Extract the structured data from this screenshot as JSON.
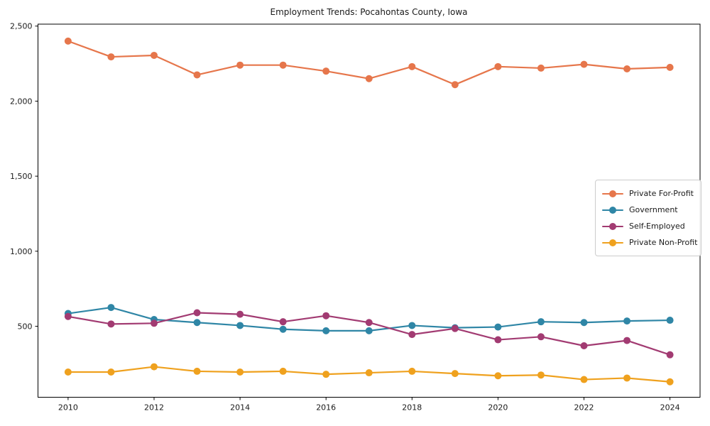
{
  "chart_data": {
    "type": "line",
    "title": "Employment Trends: Pocahontas County, Iowa",
    "xlabel": "",
    "ylabel": "",
    "x": [
      2010,
      2011,
      2012,
      2013,
      2014,
      2015,
      2016,
      2017,
      2018,
      2019,
      2020,
      2021,
      2022,
      2023,
      2024
    ],
    "series": [
      {
        "name": "Private For-Profit",
        "color": "#e6764b",
        "values": [
          2400,
          2295,
          2305,
          2175,
          2240,
          2240,
          2200,
          2150,
          2230,
          2110,
          2230,
          2220,
          2245,
          2215,
          2225
        ]
      },
      {
        "name": "Government",
        "color": "#2f86a6",
        "values": [
          585,
          625,
          545,
          525,
          505,
          480,
          470,
          470,
          505,
          490,
          495,
          530,
          525,
          535,
          540
        ]
      },
      {
        "name": "Self-Employed",
        "color": "#a23b72",
        "values": [
          565,
          515,
          520,
          590,
          580,
          530,
          570,
          525,
          445,
          485,
          410,
          430,
          370,
          405,
          310
        ]
      },
      {
        "name": "Private Non-Profit",
        "color": "#efa11e",
        "values": [
          195,
          195,
          230,
          200,
          195,
          200,
          180,
          190,
          200,
          185,
          170,
          175,
          145,
          155,
          130
        ]
      }
    ],
    "xticks": {
      "values": [
        2010,
        2012,
        2014,
        2016,
        2018,
        2020,
        2022,
        2024
      ],
      "labels": [
        "2010",
        "2012",
        "2014",
        "2016",
        "2018",
        "2020",
        "2022",
        "2024"
      ]
    },
    "yticks": {
      "values": [
        500,
        1000,
        1500,
        2000,
        2500
      ],
      "labels": [
        "500",
        "1,000",
        "1,500",
        "2,000",
        "2,500"
      ]
    },
    "xlim": [
      2009.3,
      2024.7
    ],
    "ylim": [
      27,
      2513
    ],
    "grid": false,
    "legend_position": "center-right",
    "marker": "circle",
    "axis_color": "#000000"
  }
}
